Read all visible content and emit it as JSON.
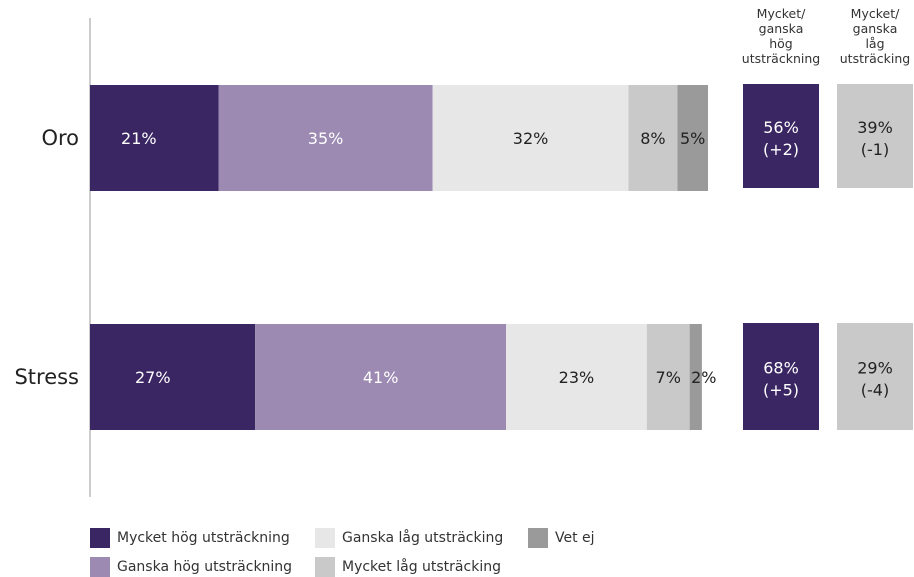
{
  "chart_data": {
    "type": "bar",
    "orientation": "horizontal",
    "stacked": true,
    "categories": [
      "Oro",
      "Stress"
    ],
    "series": [
      {
        "name": "Mycket hög utsträckning",
        "color": "#3a2663",
        "label_color": "#ffffff",
        "values": [
          21,
          27
        ],
        "labels": [
          "21%",
          "27%"
        ]
      },
      {
        "name": "Ganska hög utsträckning",
        "color": "#9c8ab3",
        "label_color": "#ffffff",
        "values": [
          35,
          41
        ],
        "labels": [
          "35%",
          "41%"
        ]
      },
      {
        "name": "Ganska låg utsträcking",
        "color": "#e7e7e7",
        "label_color": "#222222",
        "values": [
          32,
          23
        ],
        "labels": [
          "32%",
          "23%"
        ]
      },
      {
        "name": "Mycket låg utsträcking",
        "color": "#c9c9c9",
        "label_color": "#222222",
        "values": [
          8,
          7
        ],
        "labels": [
          "8%",
          "7%"
        ]
      },
      {
        "name": "Vet ej",
        "color": "#9a9a9a",
        "label_color": "#222222",
        "values": [
          5,
          2
        ],
        "labels": [
          "5%",
          "2%"
        ]
      }
    ],
    "summary_columns": [
      {
        "header": [
          "Mycket/",
          "ganska",
          "hög",
          "utsträckning"
        ],
        "color": "#3a2663",
        "text_color": "#ffffff",
        "values": [
          [
            "56%",
            "(+2)"
          ],
          [
            "68%",
            "(+5)"
          ]
        ]
      },
      {
        "header": [
          "Mycket/",
          "ganska",
          "låg",
          "utsträcking"
        ],
        "color": "#c9c9c9",
        "text_color": "#222222",
        "values": [
          [
            "39%",
            "(-1)"
          ],
          [
            "29%",
            "(-4)"
          ]
        ]
      }
    ],
    "xlim": [
      0,
      101
    ],
    "legend_position": "bottom",
    "grid": false
  }
}
